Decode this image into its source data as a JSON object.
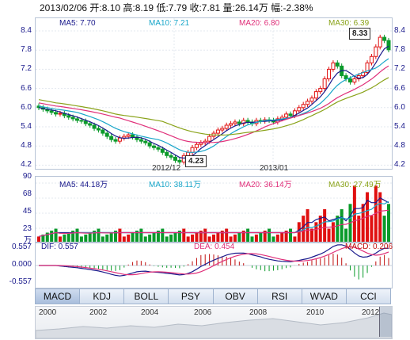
{
  "header": {
    "quote_line": "2013/02/06 开:8.10  高:8.19  低:7.79  收:7.81  量:26.14万  幅:-2.38%"
  },
  "price_panel": {
    "ma_labels": [
      {
        "text": "MA5: 7.70",
        "color": "#1a1a8c"
      },
      {
        "text": "MA10: 7.21",
        "color": "#19a6c9"
      },
      {
        "text": "MA20: 6.80",
        "color": "#e0307a"
      },
      {
        "text": "MA30: 6.39",
        "color": "#8aa31a"
      }
    ],
    "y_ticks": [
      "8.4",
      "7.8",
      "7.2",
      "6.6",
      "6.0",
      "5.4",
      "4.8",
      "4.2"
    ],
    "x_labels": [
      "2012/12",
      "2013/01"
    ],
    "high_callout": "8.33",
    "low_callout": "4.23"
  },
  "volume_panel": {
    "ma_labels": [
      {
        "text": "MA5: 44.18万",
        "color": "#1a1a8c"
      },
      {
        "text": "MA10: 38.11万",
        "color": "#19a6c9"
      },
      {
        "text": "MA20: 36.14万",
        "color": "#e0307a"
      },
      {
        "text": "MA30: 27.49万",
        "color": "#8aa31a"
      }
    ],
    "y_ticks": [
      "90",
      "68",
      "45",
      "23"
    ],
    "unit": "万"
  },
  "macd_panel": {
    "labels": [
      {
        "text": "DIF: 0.557",
        "color": "#1a1a8c"
      },
      {
        "text": "DEA: 0.454",
        "color": "#e0307a"
      },
      {
        "text": "MACD: 0.206",
        "color": "#c01010"
      }
    ],
    "y_ticks": [
      "0.557",
      "0.000",
      "-0.557"
    ]
  },
  "indicator_tabs": [
    "MACD",
    "KDJ",
    "BOLL",
    "PSY",
    "OBV",
    "RSI",
    "WVAD",
    "CCI"
  ],
  "timeline_years": [
    "2000",
    "2002",
    "2004",
    "2006",
    "2008",
    "2010",
    "2012"
  ],
  "colors": {
    "up": "#e01010",
    "down": "#0a9a2a",
    "ma5": "#1a1a8c",
    "ma10": "#19a6c9",
    "ma20": "#e0307a",
    "ma30": "#8aa31a"
  }
}
